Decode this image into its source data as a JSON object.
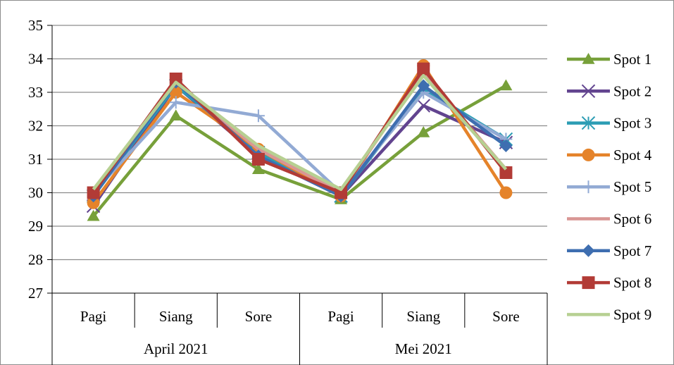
{
  "chart_data": {
    "type": "line",
    "title": "",
    "xlabel": "",
    "ylabel": "",
    "ylim": [
      27,
      35
    ],
    "yticks": [
      27,
      28,
      29,
      30,
      31,
      32,
      33,
      34,
      35
    ],
    "grid": true,
    "legend_position": "right",
    "categories": [
      "Pagi",
      "Siang",
      "Sore",
      "Pagi",
      "Siang",
      "Sore"
    ],
    "groups": [
      {
        "label": "April 2021",
        "span": 3
      },
      {
        "label": "Mei 2021",
        "span": 3
      }
    ],
    "series": [
      {
        "name": "Spot 1",
        "color": "#77a03a",
        "marker": "triangle",
        "values": [
          29.3,
          32.3,
          30.7,
          29.8,
          31.8,
          33.2
        ]
      },
      {
        "name": "Spot 2",
        "color": "#62448f",
        "marker": "x",
        "values": [
          29.6,
          33.2,
          31.1,
          29.9,
          32.6,
          31.5
        ]
      },
      {
        "name": "Spot 3",
        "color": "#2c9db4",
        "marker": "star",
        "values": [
          29.9,
          33.2,
          31.2,
          29.9,
          33.1,
          31.6
        ]
      },
      {
        "name": "Spot 4",
        "color": "#e5832a",
        "marker": "circle",
        "values": [
          29.7,
          33.0,
          31.3,
          29.9,
          33.8,
          30.0
        ]
      },
      {
        "name": "Spot 5",
        "color": "#92aad4",
        "marker": "plus",
        "values": [
          30.0,
          32.7,
          32.3,
          30.0,
          33.0,
          31.6
        ]
      },
      {
        "name": "Spot 6",
        "color": "#d99694",
        "marker": "none",
        "values": [
          30.0,
          33.3,
          31.3,
          30.0,
          33.6,
          30.7
        ]
      },
      {
        "name": "Spot 7",
        "color": "#3e6eb0",
        "marker": "diamond",
        "values": [
          29.9,
          33.3,
          31.1,
          29.9,
          33.2,
          31.4
        ]
      },
      {
        "name": "Spot 8",
        "color": "#b23b36",
        "marker": "square",
        "values": [
          30.0,
          33.4,
          31.0,
          30.0,
          33.7,
          30.6
        ]
      },
      {
        "name": "Spot 9",
        "color": "#b7d092",
        "marker": "none",
        "values": [
          30.1,
          33.3,
          31.4,
          30.1,
          33.5,
          30.7
        ]
      }
    ]
  }
}
